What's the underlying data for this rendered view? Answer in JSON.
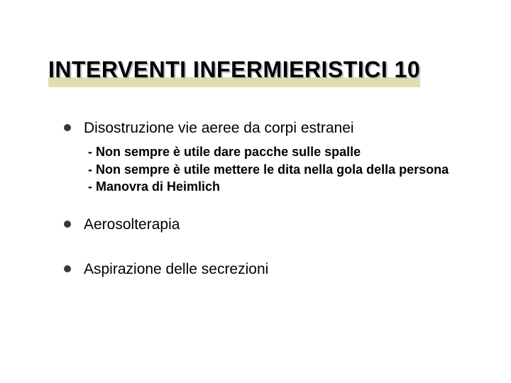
{
  "slide": {
    "title": "INTERVENTI INFERMIERISTICI 10",
    "title_fontsize": 32,
    "title_color": "#000000",
    "title_shadow_color": "#c0c0c0",
    "underline_color": "#c9c56a",
    "background_color": "#ffffff",
    "body_fontsize": 21,
    "sub_fontsize": 18,
    "bullet_color": "#383838",
    "items": [
      {
        "text": "Disostruzione vie aeree da corpi estranei",
        "sub": [
          "- Non sempre è utile dare pacche sulle spalle",
          "- Non sempre è utile mettere le dita nella gola della persona",
          "- Manovra di Heimlich"
        ]
      },
      {
        "text": "Aerosolterapia",
        "sub": []
      },
      {
        "text": "Aspirazione delle secrezioni",
        "sub": []
      }
    ]
  }
}
